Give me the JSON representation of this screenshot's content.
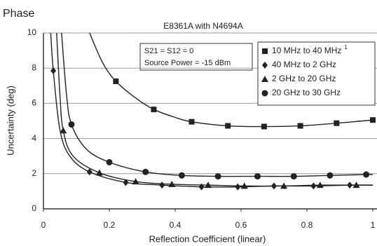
{
  "chart_data": {
    "type": "line",
    "title": "Phase",
    "subtitle": "E8361A with N4694A",
    "x_label": "Reflection Coefficient (linear)",
    "y_label": "Uncertainty (deg)",
    "annotations": [
      "S21 = S12 = 0",
      "Source Power = -15 dBm"
    ],
    "xlim": [
      0,
      1
    ],
    "xticks": [
      0,
      0.2,
      0.4,
      0.6,
      0.8,
      1
    ],
    "ylim": [
      0,
      10
    ],
    "yticks": [
      0,
      2,
      4,
      6,
      8,
      10
    ],
    "grid": true,
    "legend": "top-right",
    "series": [
      {
        "name": "10 MHz to 40 MHz",
        "footnote": "1",
        "color": "#222222",
        "marker": "square",
        "x": [
          0.22,
          0.335,
          0.45,
          0.56,
          0.67,
          0.78,
          0.89,
          1.0
        ],
        "values": [
          7.25,
          5.65,
          4.95,
          4.72,
          4.68,
          4.72,
          4.87,
          5.05
        ],
        "curve_x": [
          0.14,
          0.18,
          0.22,
          0.28,
          0.335,
          0.4,
          0.45,
          0.56,
          0.67,
          0.78,
          0.89,
          1.0
        ],
        "curve_values": [
          10,
          8.3,
          7.25,
          6.3,
          5.65,
          5.2,
          4.95,
          4.72,
          4.68,
          4.72,
          4.87,
          5.05
        ]
      },
      {
        "name": "40 MHz to 2 GHz",
        "color": "#222222",
        "marker": "diamond",
        "x": [
          0.03,
          0.14,
          0.25,
          0.36,
          0.48,
          0.59,
          0.7,
          0.82,
          0.93
        ],
        "values": [
          7.85,
          2.1,
          1.5,
          1.35,
          1.25,
          1.25,
          1.3,
          1.3,
          1.35
        ],
        "curve_x": [
          0.022,
          0.03,
          0.05,
          0.08,
          0.14,
          0.25,
          0.36,
          0.48,
          0.59,
          0.7,
          0.82,
          0.93,
          1.0
        ],
        "curve_values": [
          10,
          7.85,
          4.5,
          3.0,
          2.1,
          1.5,
          1.35,
          1.25,
          1.25,
          1.3,
          1.3,
          1.35,
          1.35
        ]
      },
      {
        "name": "2 GHz to 20 GHz",
        "color": "#222222",
        "marker": "triangle",
        "x": [
          0.06,
          0.17,
          0.28,
          0.39,
          0.5,
          0.61,
          0.73,
          0.84,
          0.95
        ],
        "values": [
          4.45,
          2.05,
          1.55,
          1.4,
          1.35,
          1.3,
          1.3,
          1.35,
          1.35
        ],
        "curve_x": [
          0.04,
          0.05,
          0.06,
          0.09,
          0.17,
          0.28,
          0.39,
          0.5,
          0.61,
          0.73,
          0.84,
          0.95,
          1.0
        ],
        "curve_values": [
          10,
          6.5,
          4.45,
          3.0,
          2.05,
          1.55,
          1.4,
          1.35,
          1.3,
          1.3,
          1.35,
          1.35,
          1.35
        ]
      },
      {
        "name": "20 GHz to 30 GHz",
        "color": "#222222",
        "marker": "circle",
        "x": [
          0.085,
          0.2,
          0.31,
          0.42,
          0.53,
          0.65,
          0.76,
          0.87,
          0.98
        ],
        "values": [
          4.8,
          2.65,
          2.1,
          1.9,
          1.85,
          1.85,
          1.85,
          1.9,
          1.95
        ],
        "curve_x": [
          0.055,
          0.07,
          0.085,
          0.13,
          0.2,
          0.31,
          0.42,
          0.53,
          0.65,
          0.76,
          0.87,
          0.98,
          1.0
        ],
        "curve_values": [
          10,
          6.5,
          4.8,
          3.4,
          2.65,
          2.1,
          1.9,
          1.85,
          1.85,
          1.85,
          1.9,
          1.95,
          1.95
        ]
      }
    ]
  }
}
